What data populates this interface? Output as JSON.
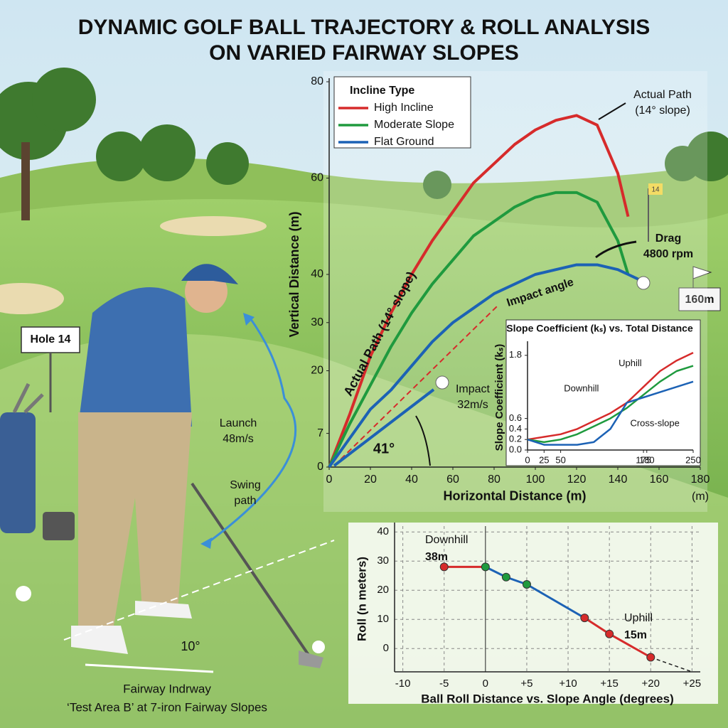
{
  "title": [
    "DYNAMIC GOLF BALL TRAJECTORY & ROLL ANALYSIS",
    "ON VARIED FAIRWAY SLOPES"
  ],
  "scene": {
    "hole_sign": "Hole 14",
    "flag": "14",
    "distance_marker": "160m",
    "launch": [
      "Launch",
      "48m/s"
    ],
    "swing": [
      "Swing",
      "path"
    ],
    "angle": "10°",
    "caption": [
      "Fairway Indrway",
      "‘Test Area B’ at 7-iron Fairway Slopes"
    ]
  },
  "chart_data": [
    {
      "type": "line",
      "x_label": "Horizontal Distance (m)",
      "x_unit": "(m)",
      "y_label": "Vertical Distance (m)",
      "legend_title": "Incline Type",
      "legend": "upper left",
      "x": [
        0,
        10,
        20,
        30,
        40,
        50,
        60,
        70,
        80,
        90,
        100,
        110,
        120,
        130,
        140,
        145,
        150
      ],
      "series": [
        {
          "name": "High Incline",
          "color": "#d62b2b",
          "values": [
            0,
            11,
            23,
            32,
            40,
            47,
            53,
            59,
            63,
            67,
            70,
            72,
            73,
            71,
            61,
            52,
            null
          ]
        },
        {
          "name": "Moderate Slope",
          "color": "#1f9a3e",
          "values": [
            0,
            9,
            17,
            25,
            32,
            38,
            43,
            48,
            51,
            54,
            56,
            57,
            57,
            55,
            47,
            40,
            null
          ]
        },
        {
          "name": "Flat Ground",
          "color": "#1c62b5",
          "values": [
            0,
            6,
            12,
            16,
            21,
            26,
            30,
            33,
            36,
            38,
            40,
            41,
            42,
            42,
            41,
            40,
            39
          ]
        }
      ],
      "xlim": [
        0,
        180
      ],
      "xticks": [
        0,
        20,
        40,
        60,
        80,
        100,
        120,
        140,
        160,
        180
      ],
      "ylim": [
        0,
        80
      ],
      "yticks": [
        0,
        7,
        20,
        30,
        40,
        60,
        80
      ],
      "annotations": [
        "Actual Path",
        "(14° slope)",
        "Drag",
        "4800 rpm",
        "Actual Path (14° slope)",
        "Impact angle",
        "Impact",
        "32m/s",
        "41°"
      ]
    },
    {
      "type": "line",
      "title": "Slope Coefficient (kₛ) vs. Total Distance",
      "y_label": "Slope Coefficient (kₛ)",
      "legend": "inline",
      "x": [
        0,
        25,
        50,
        75,
        100,
        125,
        150,
        175,
        200,
        225,
        250
      ],
      "series": [
        {
          "name": "Uphill",
          "color": "#d62b2b",
          "values": [
            0.2,
            0.25,
            0.3,
            0.4,
            0.55,
            0.7,
            0.9,
            1.2,
            1.5,
            1.7,
            1.85
          ]
        },
        {
          "name": "Downhill",
          "color": "#1f9a3e",
          "values": [
            0.2,
            0.15,
            0.2,
            0.3,
            0.45,
            0.6,
            0.8,
            1.05,
            1.3,
            1.5,
            1.6
          ]
        },
        {
          "name": "Cross-slope",
          "color": "#1c62b5",
          "values": [
            0.2,
            0.1,
            0.1,
            0.1,
            0.15,
            0.4,
            0.9,
            1.0,
            1.1,
            1.2,
            1.3
          ]
        }
      ],
      "xlim": [
        0,
        250
      ],
      "xticks": [
        0,
        25,
        50,
        175,
        180,
        250
      ],
      "ylim": [
        0,
        2
      ],
      "yticks": [
        {
          "value": 0,
          "label": "0.0"
        },
        0.2,
        0.4,
        0.6,
        1.8
      ]
    },
    {
      "type": "line",
      "markers": true,
      "grid": "dashed",
      "y_label": "Roll (n meters)",
      "x_label": "Ball Roll Distance vs. Slope Angle (degrees)",
      "x": [
        -5,
        0,
        2.5,
        5,
        12,
        15,
        20
      ],
      "values": [
        28,
        28,
        24.5,
        22,
        10.5,
        5,
        -3
      ],
      "point_colors": [
        "#d62b2b",
        "#1f9a3e",
        "#1f9a3e",
        "#1f9a3e",
        "#d62b2b",
        "#d62b2b",
        "#d62b2b"
      ],
      "segment_colors": [
        "#d62b2b",
        "#1c62b5",
        "#1c62b5",
        "#1c62b5",
        "#d62b2b",
        "#d62b2b"
      ],
      "extension": {
        "x": [
          20,
          25
        ],
        "values": [
          -3,
          -8
        ]
      },
      "xlim": [
        -11,
        26
      ],
      "xticks": [
        -10,
        -5,
        0,
        {
          "value": 5,
          "label": "+5"
        },
        {
          "value": 10,
          "label": "+10"
        },
        {
          "value": 15,
          "label": "+15"
        },
        {
          "value": 20,
          "label": "+20"
        },
        {
          "value": 25,
          "label": "+25"
        }
      ],
      "ylim": [
        -8,
        42
      ],
      "yticks": [
        0,
        10,
        20,
        30,
        40
      ],
      "annotations": [
        "Downhill",
        "38m",
        "Uphill",
        "15m"
      ]
    }
  ]
}
